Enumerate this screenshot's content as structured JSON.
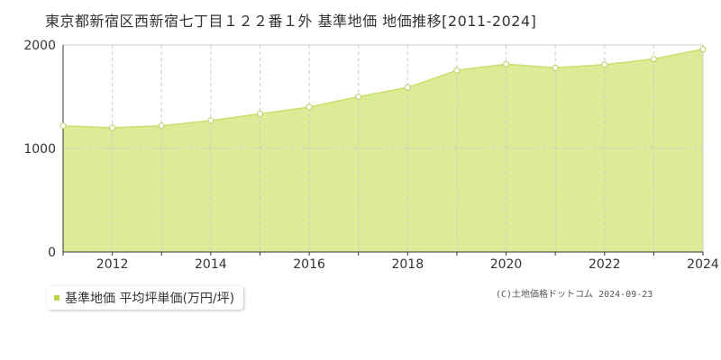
{
  "title": "東京都新宿区西新宿七丁目１２２番１外 基準地価 地価推移[2011-2024]",
  "copyright": "(C)土地価格ドットコム 2024-09-23",
  "colors": {
    "area_fill": "#dcec96",
    "line": "#c8e06e",
    "marker_stroke": "#b8d060",
    "marker_fill": "#ffffff",
    "grid": "#cccccc",
    "axis": "#333333",
    "legend_swatch": "#b8d448"
  },
  "chart_data": {
    "type": "area",
    "x": [
      2011,
      2012,
      2013,
      2014,
      2015,
      2016,
      2017,
      2018,
      2019,
      2020,
      2021,
      2022,
      2023,
      2024
    ],
    "series": [
      {
        "name": "基準地価 平均坪単価(万円/坪)",
        "values": [
          1220,
          1200,
          1220,
          1270,
          1335,
          1400,
          1500,
          1590,
          1755,
          1815,
          1780,
          1810,
          1865,
          1960
        ]
      }
    ],
    "xlim": [
      2011,
      2024
    ],
    "ylim": [
      0,
      2000
    ],
    "x_ticks": [
      2012,
      2014,
      2016,
      2018,
      2020,
      2022,
      2024
    ],
    "y_ticks": [
      0,
      1000,
      2000
    ],
    "grid": true,
    "legend_position": "bottom-left"
  }
}
